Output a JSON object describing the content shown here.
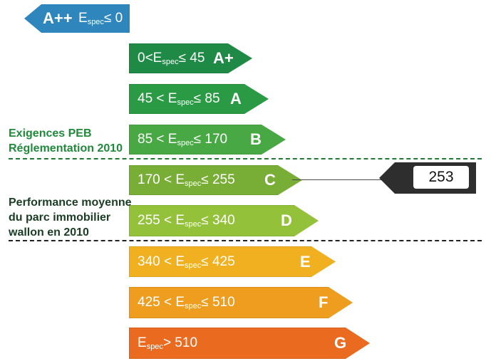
{
  "scale": {
    "aplusplus": {
      "letter": "A++",
      "range_prefix": "E",
      "range_sub": "spec",
      "range_suffix": "≤ 0",
      "color": "#2f86bd"
    },
    "classes": [
      {
        "letter": "A+",
        "prefix": "0<E",
        "sub": "spec",
        "suffix": "≤ 45",
        "color": "#1e8a45"
      },
      {
        "letter": "A",
        "prefix": "45 < E",
        "sub": "spec",
        "suffix": "≤ 85",
        "color": "#2a9a45"
      },
      {
        "letter": "B",
        "prefix": "85 < E",
        "sub": "spec",
        "suffix": "≤ 170",
        "color": "#47a844"
      },
      {
        "letter": "C",
        "prefix": "170 < E",
        "sub": "spec",
        "suffix": "≤ 255",
        "color": "#78ae36"
      },
      {
        "letter": "D",
        "prefix": "255 < E",
        "sub": "spec",
        "suffix": "≤ 340",
        "color": "#93c13a"
      },
      {
        "letter": "E",
        "prefix": "340 < E",
        "sub": "spec",
        "suffix": "≤ 425",
        "color": "#f0b020"
      },
      {
        "letter": "F",
        "prefix": "425 < E",
        "sub": "spec",
        "suffix": "≤ 510",
        "color": "#ef9d1f"
      },
      {
        "letter": "G",
        "prefix": "E",
        "sub": "spec",
        "suffix": "> 510",
        "color": "#ea6b1f"
      }
    ]
  },
  "labels": {
    "peb_line1": "Exigences PEB",
    "peb_line2": "Réglementation 2010",
    "perf_line1": "Performance moyenne",
    "perf_line2": "du parc immobilier",
    "perf_line3": "wallon en 2010"
  },
  "indicator": {
    "value": "253",
    "class": "C"
  }
}
